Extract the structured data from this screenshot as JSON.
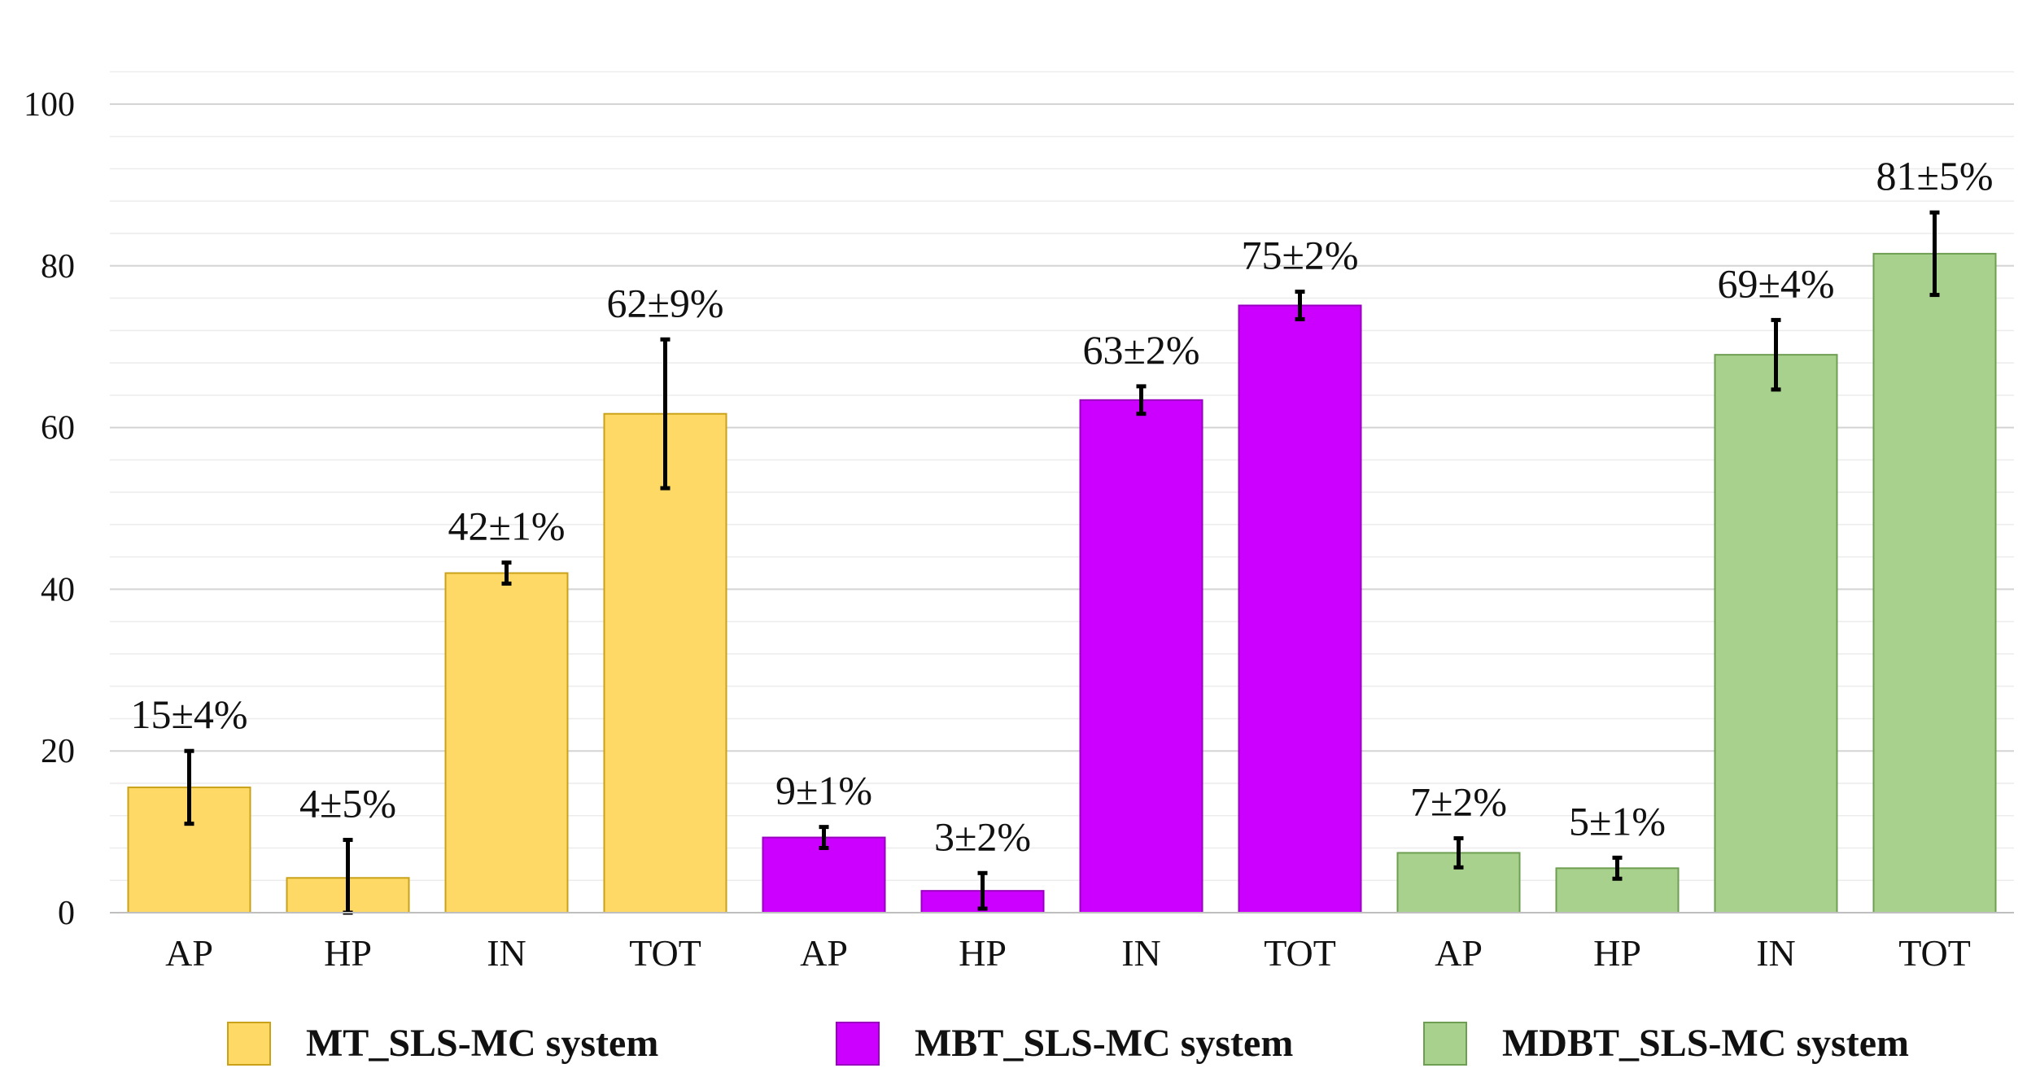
{
  "chart_data": {
    "type": "bar",
    "title": "",
    "xlabel": "",
    "ylabel": "",
    "ylim": [
      0,
      100
    ],
    "y_ticks": [
      0,
      20,
      40,
      60,
      80,
      100
    ],
    "grid": "horizontal",
    "legend_position": "bottom",
    "categories": [
      "AP",
      "HP",
      "IN",
      "TOT",
      "AP",
      "HP",
      "IN",
      "TOT",
      "AP",
      "HP",
      "IN",
      "TOT"
    ],
    "series": [
      {
        "name": "MT_SLS-MC system",
        "color": "#FFD966",
        "border": "#C9A21A",
        "points": [
          {
            "category": "AP",
            "value": 15.5,
            "error": 4.5,
            "label": "15±4%"
          },
          {
            "category": "HP",
            "value": 4.3,
            "error": 4.7,
            "label": "4±5%"
          },
          {
            "category": "IN",
            "value": 42,
            "error": 1.3,
            "label": "42±1%"
          },
          {
            "category": "TOT",
            "value": 61.7,
            "error": 9.2,
            "label": "62±9%"
          }
        ]
      },
      {
        "name": "MBT_SLS-MC system",
        "color": "#CC00FF",
        "border": "#9A00C0",
        "points": [
          {
            "category": "AP",
            "value": 9.3,
            "error": 1.3,
            "label": "9±1%"
          },
          {
            "category": "HP",
            "value": 2.7,
            "error": 2.2,
            "label": "3±2%"
          },
          {
            "category": "IN",
            "value": 63.4,
            "error": 1.7,
            "label": "63±2%"
          },
          {
            "category": "TOT",
            "value": 75.1,
            "error": 1.7,
            "label": "75±2%"
          }
        ]
      },
      {
        "name": "MDBT_SLS-MC system",
        "color": "#A9D18E",
        "border": "#6E9E52",
        "points": [
          {
            "category": "AP",
            "value": 7.4,
            "error": 1.8,
            "label": "7±2%"
          },
          {
            "category": "HP",
            "value": 5.5,
            "error": 1.3,
            "label": "5±1%"
          },
          {
            "category": "IN",
            "value": 69,
            "error": 4.3,
            "label": "69±4%"
          },
          {
            "category": "TOT",
            "value": 81.5,
            "error": 5.1,
            "label": "81±5%"
          }
        ]
      }
    ]
  }
}
